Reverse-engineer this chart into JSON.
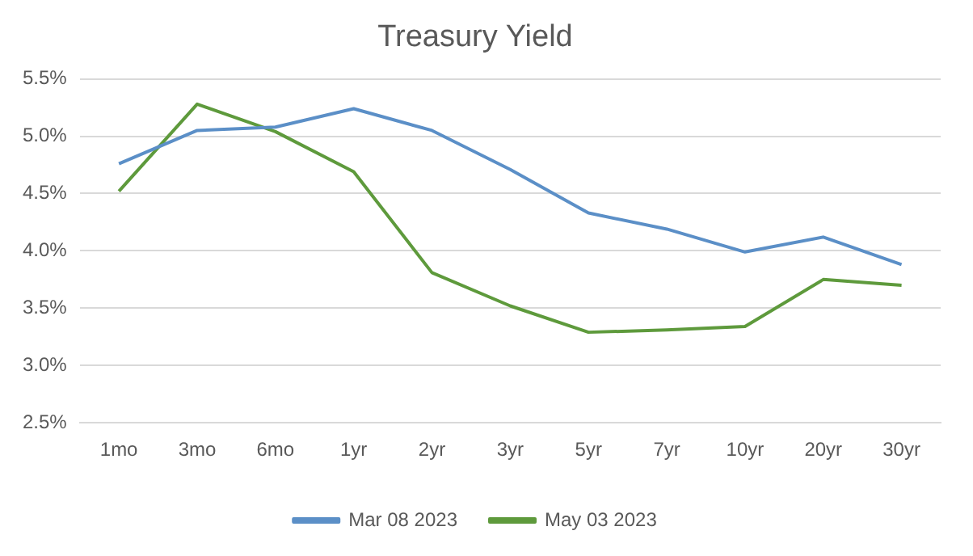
{
  "chart_data": {
    "type": "line",
    "title": "Treasury Yield",
    "categories": [
      "1mo",
      "3mo",
      "6mo",
      "1yr",
      "2yr",
      "3yr",
      "5yr",
      "7yr",
      "10yr",
      "20yr",
      "30yr"
    ],
    "series": [
      {
        "name": "Mar 08 2023",
        "color": "#5b8fc7",
        "values": [
          4.76,
          5.05,
          5.08,
          5.24,
          5.05,
          4.71,
          4.33,
          4.19,
          3.99,
          4.12,
          3.88
        ]
      },
      {
        "name": "May 03 2023",
        "color": "#5e9a3c",
        "values": [
          4.52,
          5.28,
          5.04,
          4.69,
          3.81,
          3.52,
          3.29,
          3.31,
          3.34,
          3.75,
          3.7
        ]
      }
    ],
    "ylim": [
      2.5,
      5.5
    ],
    "yticks": [
      {
        "value": 2.5,
        "label": "2.5%"
      },
      {
        "value": 3.0,
        "label": "3.0%"
      },
      {
        "value": 3.5,
        "label": "3.5%"
      },
      {
        "value": 4.0,
        "label": "4.0%"
      },
      {
        "value": 4.5,
        "label": "4.5%"
      },
      {
        "value": 5.0,
        "label": "5.0%"
      },
      {
        "value": 5.5,
        "label": "5.5%"
      }
    ],
    "grid": "y",
    "legend": "bottom",
    "marker": "none",
    "line_style": "solid"
  }
}
